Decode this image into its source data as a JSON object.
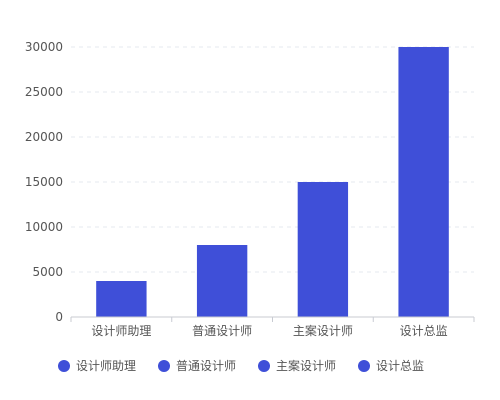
{
  "colors": {
    "bar": "#3f4fd8",
    "grid": "#e6e9ef",
    "axis": "#c8cbd2",
    "text": "#555555"
  },
  "chart_data": {
    "type": "bar",
    "categories": [
      "设计师助理",
      "普通设计师",
      "主案设计师",
      "设计总监"
    ],
    "values": [
      4000,
      8000,
      15000,
      30000
    ],
    "ylim": [
      0,
      30000
    ],
    "yticks": [
      0,
      5000,
      10000,
      15000,
      20000,
      25000,
      30000
    ],
    "grid": "horizontal-dashed",
    "legend_position": "bottom",
    "legend": [
      "设计师助理",
      "普通设计师",
      "主案设计师",
      "设计总监"
    ]
  }
}
